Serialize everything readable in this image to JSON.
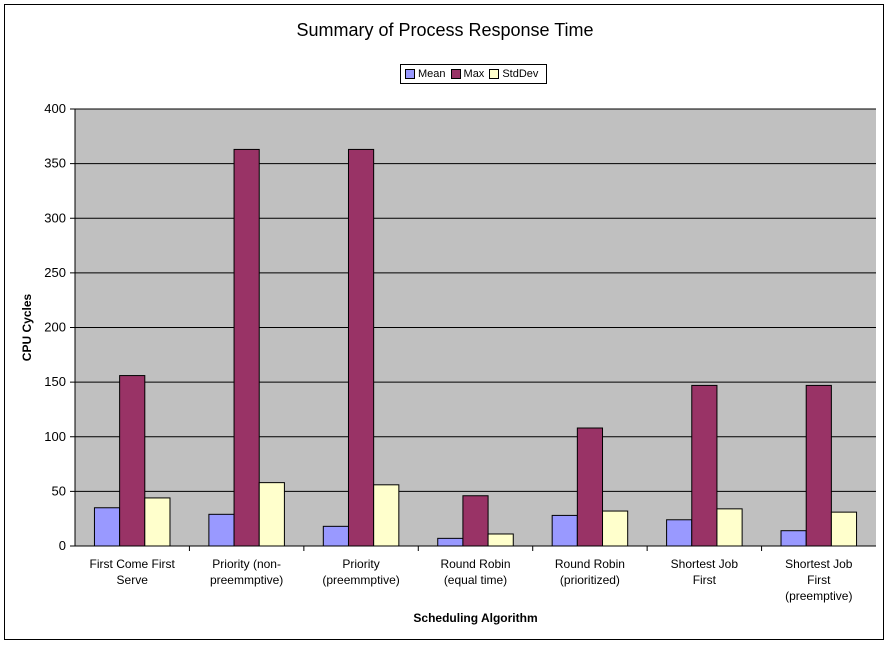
{
  "chart_data": {
    "type": "bar",
    "title": "Summary of Process  Response  Time",
    "xlabel": "Scheduling Algorithm",
    "ylabel": "CPU Cycles",
    "ylim": [
      0,
      400
    ],
    "yticks": [
      0,
      50,
      100,
      150,
      200,
      250,
      300,
      350,
      400
    ],
    "grid": true,
    "legend_position": "top-center",
    "categories": [
      [
        "First Come First",
        "Serve"
      ],
      [
        "Priority (non-",
        "preemmptive)"
      ],
      [
        "Priority",
        "(preemmptive)"
      ],
      [
        "Round Robin",
        "(equal time)"
      ],
      [
        "Round Robin",
        "(prioritized)"
      ],
      [
        "Shortest Job",
        "First"
      ],
      [
        "Shortest Job",
        "First",
        "(preemptive)"
      ]
    ],
    "series": [
      {
        "name": "Mean",
        "color": "#9999ff",
        "values": [
          35,
          29,
          18,
          7,
          28,
          24,
          14
        ]
      },
      {
        "name": "Max",
        "color": "#993366",
        "values": [
          156,
          363,
          363,
          46,
          108,
          147,
          147
        ]
      },
      {
        "name": "StdDev",
        "color": "#ffffcc",
        "values": [
          44,
          58,
          56,
          11,
          32,
          34,
          31
        ]
      }
    ],
    "plot_background": "#c0c0c0"
  }
}
